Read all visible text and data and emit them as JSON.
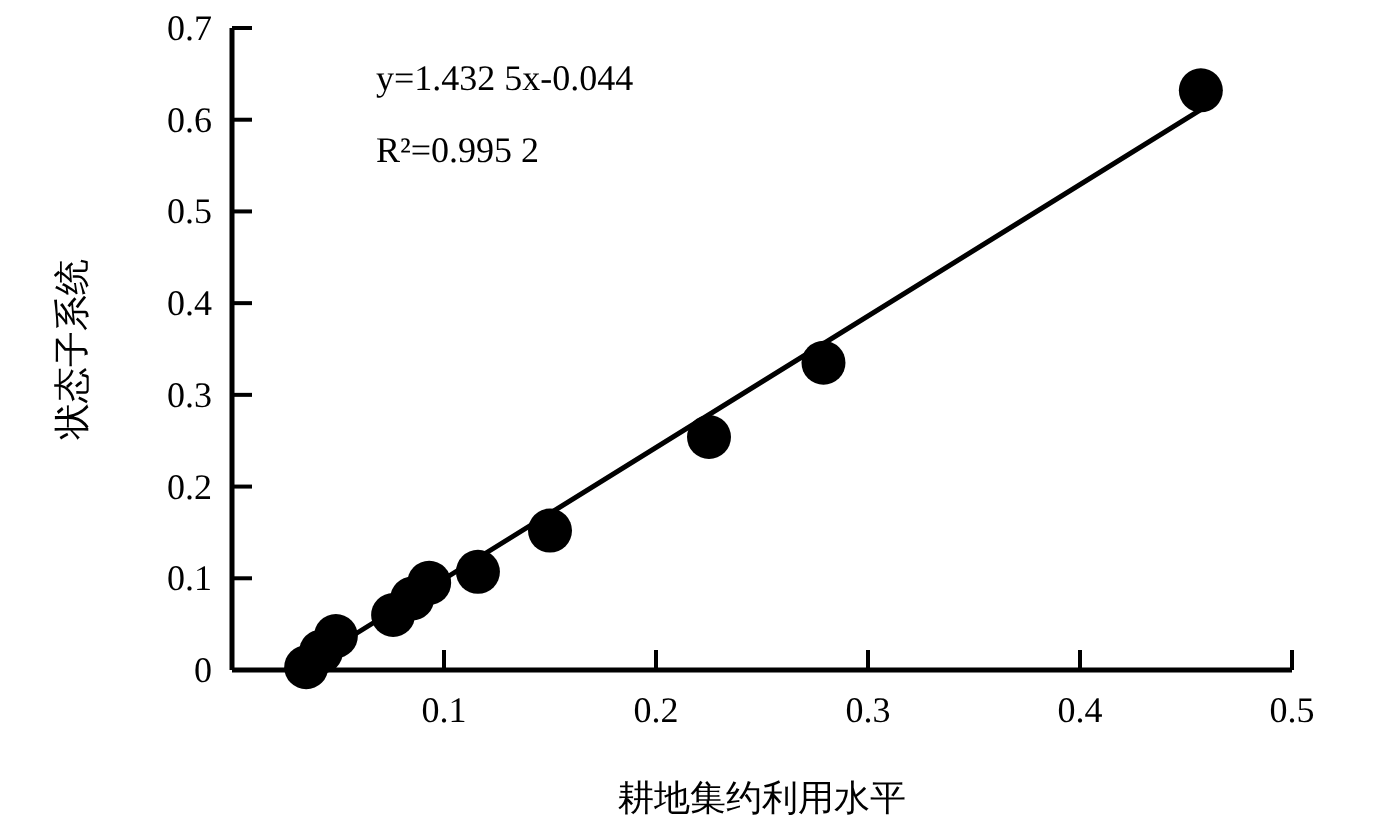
{
  "chart_data": {
    "type": "scatter",
    "xlabel": "耕地集约利用水平",
    "ylabel": "状态子系统",
    "grid": false,
    "xlim": [
      0,
      0.5
    ],
    "ylim": [
      0,
      0.7
    ],
    "xticks": [
      0.1,
      0.2,
      0.3,
      0.4,
      0.5
    ],
    "yticks": [
      0,
      0.1,
      0.2,
      0.3,
      0.4,
      0.5,
      0.6,
      0.7
    ],
    "annotations": [
      "y=1.432 5x-0.044",
      "R²=0.995 2"
    ],
    "series": [
      {
        "type": "scatter",
        "marker": "circle",
        "color": "#000000",
        "x": [
          0.035,
          0.042,
          0.049,
          0.076,
          0.085,
          0.093,
          0.116,
          0.15,
          0.225,
          0.279,
          0.457
        ],
        "values": [
          0.003,
          0.02,
          0.037,
          0.06,
          0.078,
          0.095,
          0.107,
          0.152,
          0.254,
          0.335,
          0.632
        ]
      },
      {
        "type": "line",
        "marker": "none",
        "color": "#000000",
        "x": [
          0.035,
          0.457
        ],
        "values": [
          0.006,
          0.611
        ]
      }
    ]
  }
}
